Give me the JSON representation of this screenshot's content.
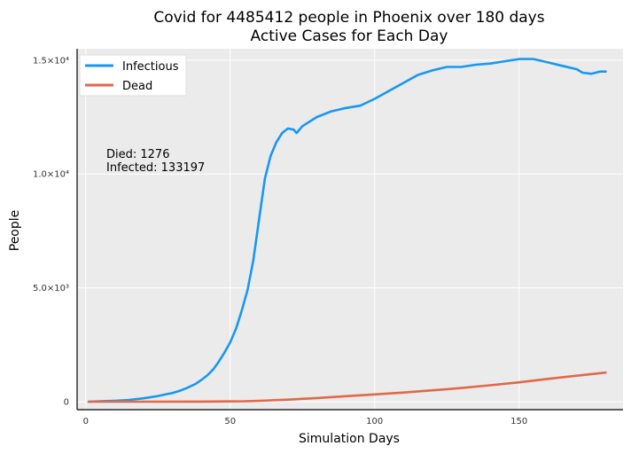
{
  "chart_data": {
    "type": "line",
    "title": "Covid for 4485412 people in Phoenix over 180 days",
    "subtitle": "Active Cases for Each Day",
    "xlabel": "Simulation Days",
    "ylabel": "People",
    "xlim": [
      -3,
      186
    ],
    "ylim": [
      -350,
      15500
    ],
    "x_ticks": [
      0,
      50,
      100,
      150
    ],
    "x_tick_labels": [
      "0",
      "50",
      "100",
      "150"
    ],
    "y_ticks": [
      0,
      5000,
      10000,
      15000
    ],
    "y_tick_labels": [
      "0",
      "5.0×10³",
      "1.0×10⁴",
      "1.5×10⁴"
    ],
    "grid": true,
    "legend_position": "top-left",
    "annotations": [
      "Died: 1276",
      "Infected: 133197"
    ],
    "colors": {
      "infectious": "#1997f0",
      "dead": "#e0694a",
      "plot_bg": "#ebebeb",
      "grid": "#ffffff"
    },
    "series": [
      {
        "name": "Infectious",
        "x": [
          1,
          5,
          10,
          15,
          20,
          25,
          28,
          30,
          33,
          35,
          38,
          40,
          42,
          44,
          46,
          48,
          50,
          52,
          54,
          56,
          58,
          60,
          62,
          64,
          66,
          68,
          70,
          72,
          73,
          75,
          80,
          85,
          90,
          95,
          100,
          105,
          110,
          115,
          120,
          125,
          130,
          135,
          140,
          145,
          150,
          155,
          160,
          165,
          170,
          172,
          175,
          178,
          180
        ],
        "values": [
          0,
          20,
          40,
          80,
          150,
          250,
          330,
          380,
          500,
          600,
          780,
          950,
          1150,
          1400,
          1750,
          2150,
          2600,
          3200,
          4000,
          4900,
          6200,
          8000,
          9800,
          10800,
          11400,
          11800,
          12000,
          11950,
          11800,
          12100,
          12500,
          12750,
          12900,
          13000,
          13300,
          13650,
          14000,
          14350,
          14550,
          14700,
          14700,
          14800,
          14850,
          14950,
          15050,
          15050,
          14900,
          14750,
          14600,
          14450,
          14400,
          14500,
          14500
        ]
      },
      {
        "name": "Dead",
        "x": [
          1,
          20,
          40,
          55,
          60,
          70,
          80,
          90,
          100,
          110,
          120,
          130,
          140,
          150,
          160,
          170,
          180
        ],
        "values": [
          0,
          0,
          5,
          20,
          40,
          90,
          160,
          240,
          320,
          400,
          500,
          600,
          720,
          850,
          1000,
          1140,
          1276
        ]
      }
    ]
  }
}
